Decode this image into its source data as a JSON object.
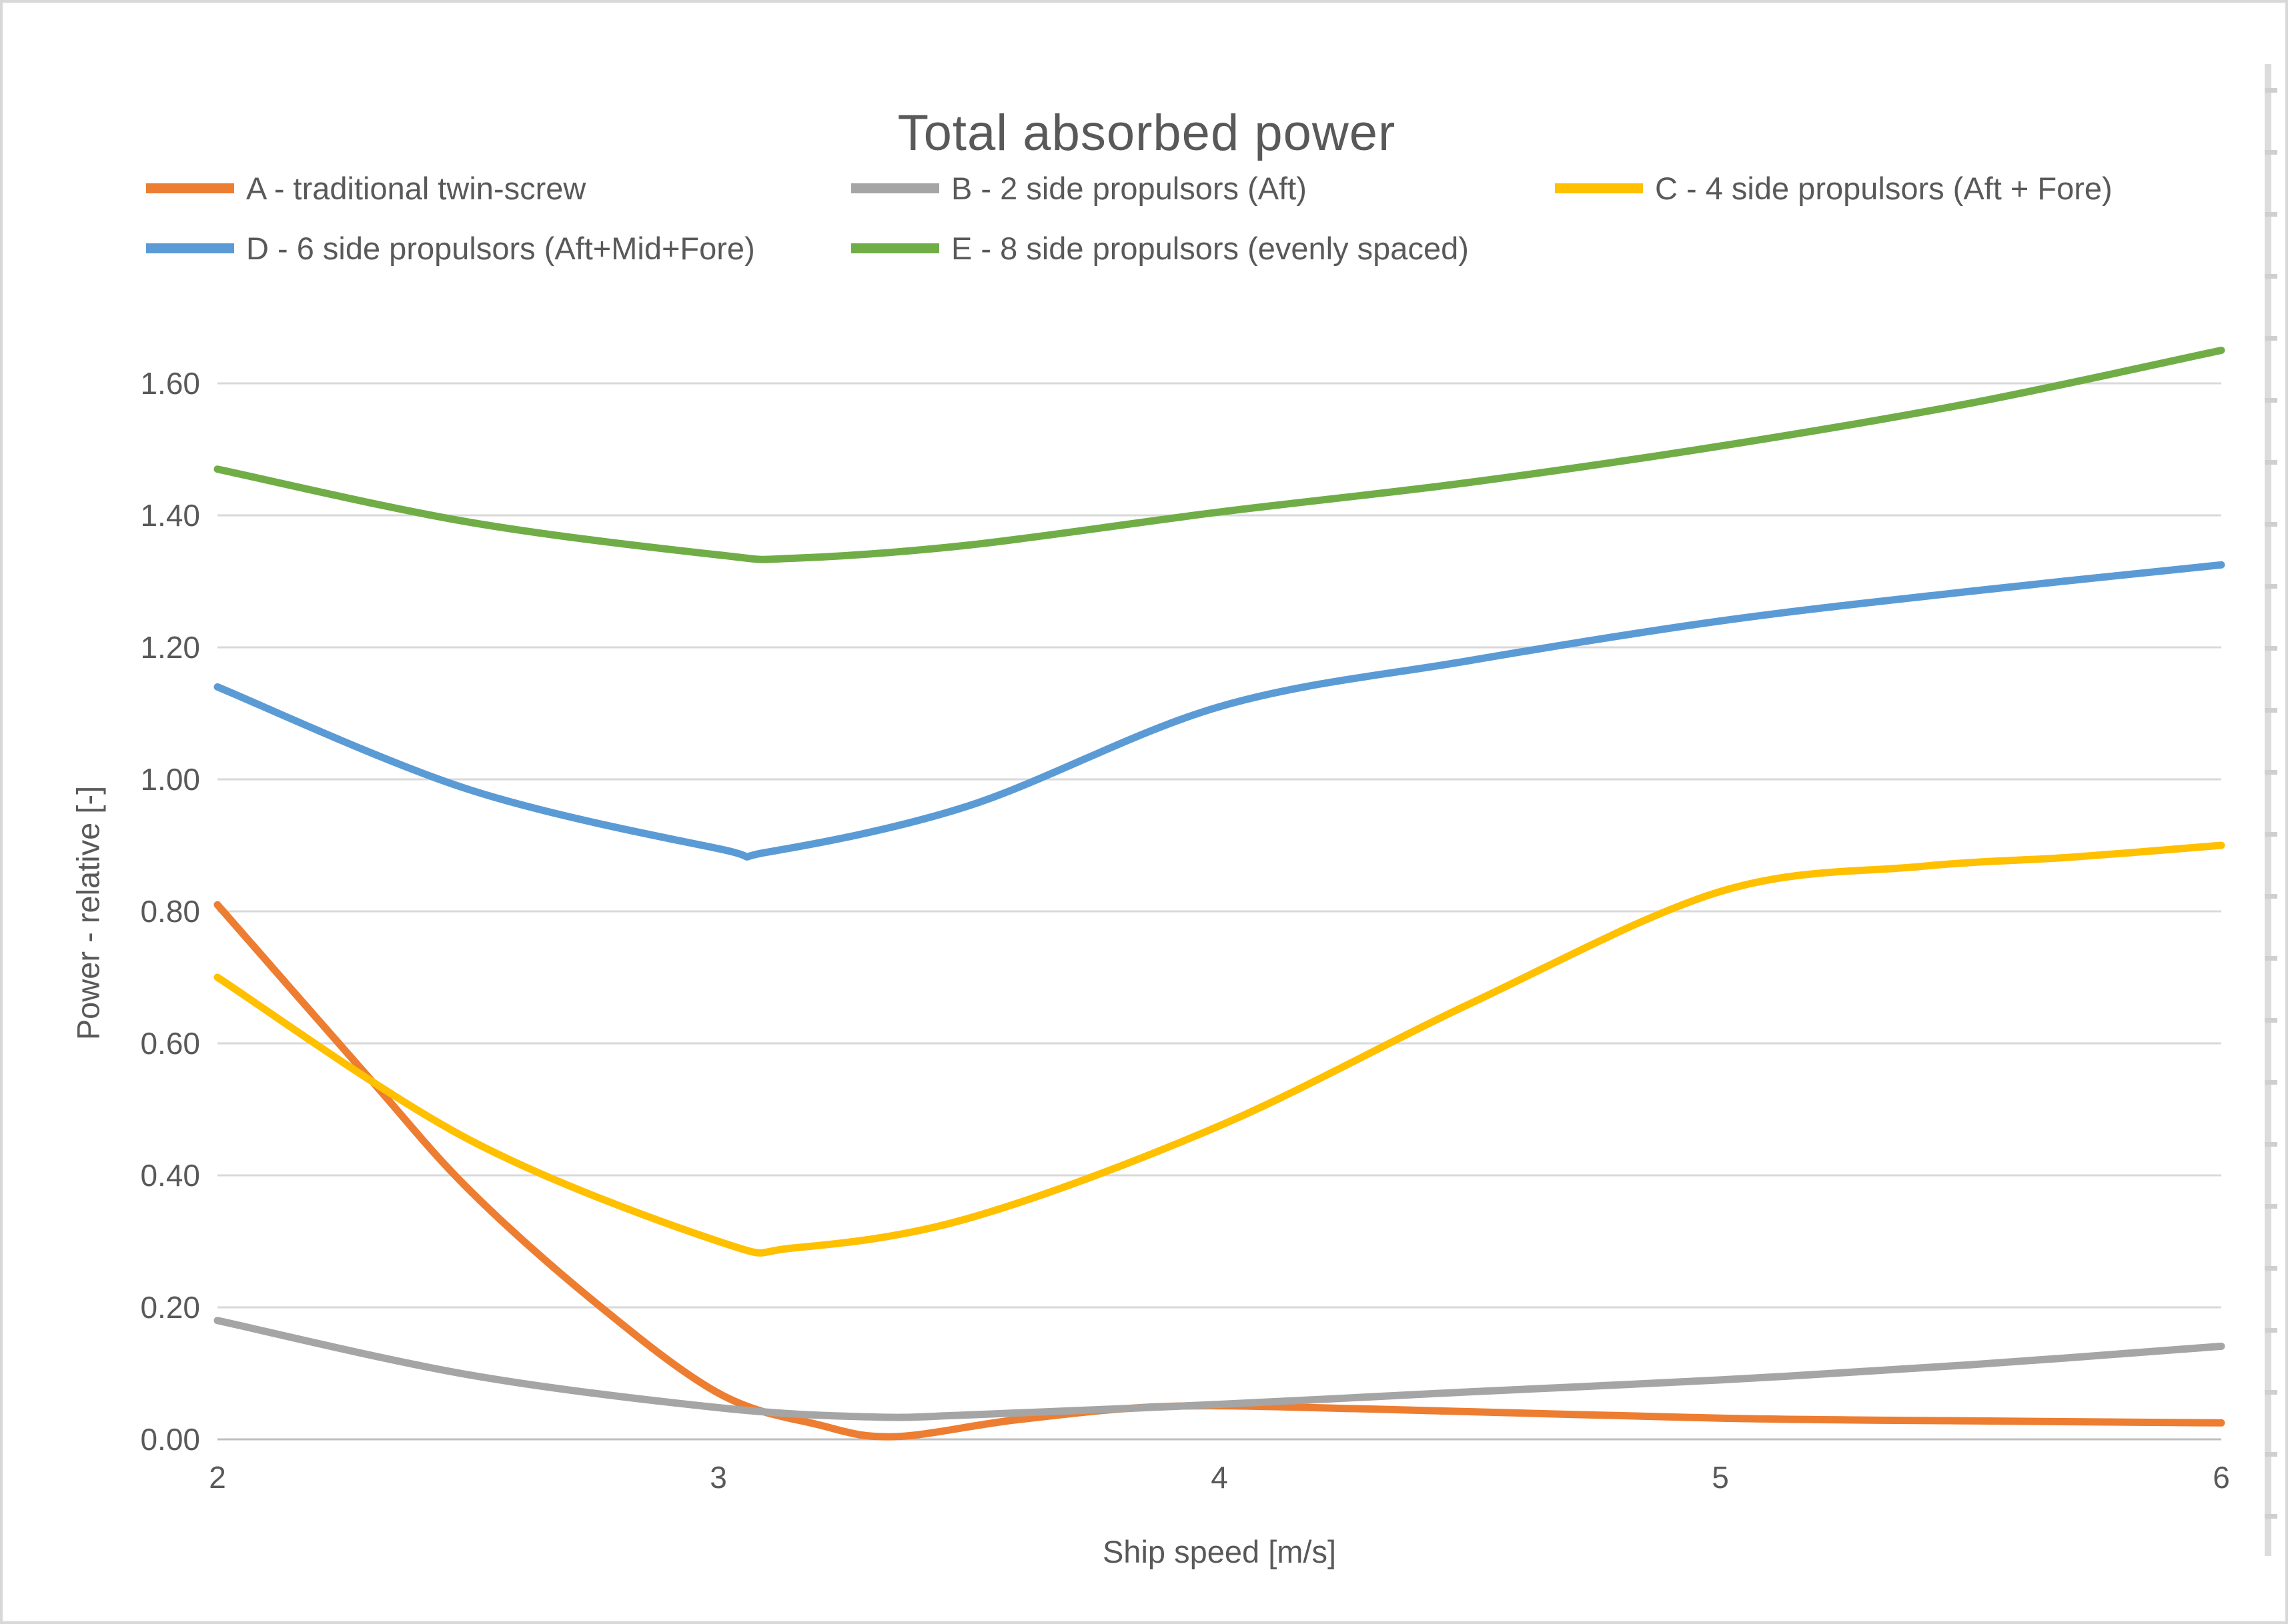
{
  "title": "Total absorbed power",
  "axes": {
    "x": {
      "title": "Ship speed [m/s]",
      "min": 2,
      "max": 6,
      "tick_labels": [
        "2",
        "3",
        "4",
        "5",
        "6"
      ],
      "tick_values": [
        2,
        3,
        4,
        5,
        6
      ]
    },
    "y": {
      "title": "Power - relative [-]",
      "min": 0,
      "max": 1.6,
      "tick_labels": [
        "0.00",
        "0.20",
        "0.40",
        "0.60",
        "0.80",
        "1.00",
        "1.20",
        "1.40",
        "1.60"
      ],
      "tick_values": [
        0,
        0.2,
        0.4,
        0.6,
        0.8,
        1.0,
        1.2,
        1.4,
        1.6
      ]
    }
  },
  "colors": {
    "series_a": "#ED7D31",
    "series_b": "#A5A5A5",
    "series_c": "#FFC000",
    "series_d": "#5B9BD5",
    "series_e": "#70AD47",
    "gridline": "#D9D9D9",
    "axis_line": "#BFBFBF",
    "text": "#595959"
  },
  "legend": {
    "items": [
      {
        "label": "A - traditional twin-screw",
        "color": "#ED7D31"
      },
      {
        "label": "B - 2 side propulsors (Aft)",
        "color": "#A5A5A5"
      },
      {
        "label": "C - 4 side propulsors (Aft + Fore)",
        "color": "#FFC000"
      },
      {
        "label": "D - 6 side propulsors (Aft+Mid+Fore)",
        "color": "#5B9BD5"
      },
      {
        "label": "E - 8 side propulsors (evenly spaced)",
        "color": "#70AD47"
      }
    ]
  },
  "chart_data": {
    "type": "line",
    "title": "Total absorbed power",
    "xlabel": "Ship speed [m/s]",
    "ylabel": "Power - relative [-]",
    "xlim": [
      2,
      6
    ],
    "ylim": [
      0,
      1.6
    ],
    "grid": "horizontal",
    "legend_position": "top",
    "series": [
      {
        "name": "A - traditional twin-screw",
        "color": "#ED7D31",
        "x": [
          2,
          2.3,
          2.5,
          2.75,
          3.0,
          3.2,
          3.35,
          3.6,
          3.9,
          4.3,
          5.0,
          5.5,
          6.0
        ],
        "y": [
          0.81,
          0.55,
          0.38,
          0.21,
          0.07,
          0.022,
          0.004,
          0.03,
          0.05,
          0.046,
          0.032,
          0.028,
          0.025
        ]
      },
      {
        "name": "B - 2 side propulsors (Aft)",
        "color": "#A5A5A5",
        "x": [
          2,
          2.5,
          3.0,
          3.3,
          3.5,
          4.0,
          4.5,
          5.0,
          5.5,
          6.0
        ],
        "y": [
          0.18,
          0.098,
          0.048,
          0.034,
          0.037,
          0.053,
          0.072,
          0.09,
          0.113,
          0.141
        ]
      },
      {
        "name": "C - 4 side propulsors (Aft + Fore)",
        "color": "#FFC000",
        "x": [
          2,
          2.5,
          3.0,
          3.15,
          3.5,
          4.0,
          4.5,
          5.0,
          5.4,
          5.7,
          6.0
        ],
        "y": [
          0.7,
          0.455,
          0.3,
          0.29,
          0.335,
          0.475,
          0.66,
          0.83,
          0.868,
          0.882,
          0.9
        ]
      },
      {
        "name": "D - 6 side propulsors (Aft+Mid+Fore)",
        "color": "#5B9BD5",
        "x": [
          2,
          2.5,
          3.0,
          3.1,
          3.5,
          4.0,
          4.5,
          5.0,
          5.5,
          6.0
        ],
        "y": [
          1.14,
          0.985,
          0.895,
          0.89,
          0.96,
          1.11,
          1.18,
          1.24,
          1.285,
          1.325
        ]
      },
      {
        "name": "E - 8 side propulsors (evenly spaced)",
        "color": "#70AD47",
        "x": [
          2,
          2.5,
          3.0,
          3.15,
          3.5,
          4.0,
          4.5,
          5.0,
          5.5,
          6.0
        ],
        "y": [
          1.47,
          1.39,
          1.34,
          1.335,
          1.355,
          1.405,
          1.45,
          1.505,
          1.57,
          1.65
        ]
      }
    ]
  }
}
